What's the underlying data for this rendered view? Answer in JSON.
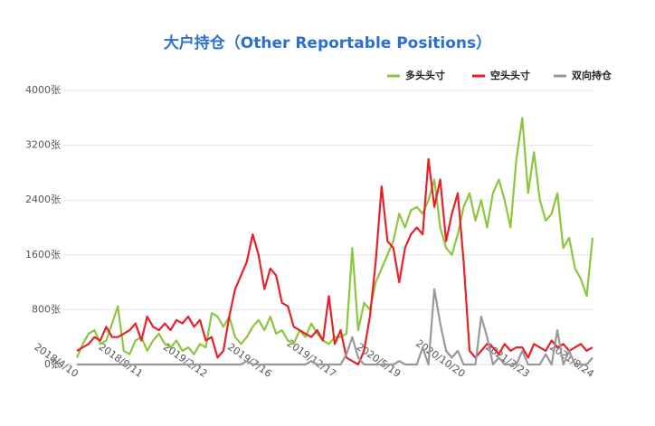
{
  "chart_data": {
    "type": "line",
    "title": "大户持仓（Other Reportable Positions）",
    "categories": [
      "2018/4/10",
      null,
      null,
      null,
      null,
      null,
      null,
      null,
      null,
      null,
      null,
      "2018/9/11",
      null,
      null,
      null,
      null,
      null,
      null,
      null,
      null,
      null,
      null,
      "2019/2/12",
      null,
      null,
      null,
      null,
      null,
      null,
      null,
      null,
      null,
      null,
      "2019/7/16",
      null,
      null,
      null,
      null,
      null,
      null,
      null,
      null,
      null,
      null,
      "2019/12/17",
      null,
      null,
      null,
      null,
      null,
      null,
      null,
      null,
      null,
      null,
      "2020/5/19",
      null,
      null,
      null,
      null,
      null,
      null,
      null,
      null,
      null,
      null,
      "2020/10/20",
      null,
      null,
      null,
      null,
      null,
      null,
      null,
      null,
      null,
      null,
      "2021/3/23",
      null,
      null,
      null,
      null,
      null,
      null,
      null,
      null,
      null,
      null,
      "2021/8/24"
    ],
    "series": [
      {
        "name": "多头头寸",
        "color": "#8cc63f",
        "values": [
          100,
          300,
          450,
          500,
          300,
          350,
          600,
          850,
          200,
          150,
          350,
          400,
          200,
          350,
          450,
          300,
          250,
          350,
          200,
          250,
          150,
          300,
          250,
          750,
          700,
          550,
          700,
          400,
          300,
          400,
          550,
          650,
          500,
          700,
          450,
          500,
          350,
          300,
          500,
          400,
          600,
          450,
          350,
          300,
          400,
          400,
          450,
          1700,
          500,
          900,
          800,
          1200,
          1400,
          1600,
          1800,
          2200,
          2000,
          2250,
          2300,
          2200,
          2400,
          2700,
          2000,
          1700,
          1600,
          1900,
          2300,
          2500,
          2100,
          2400,
          2000,
          2500,
          2700,
          2400,
          2000,
          3000,
          3600,
          2500,
          3100,
          2400,
          2100,
          2200,
          2500,
          1700,
          1850,
          1400,
          1250,
          1000,
          1850
        ]
      },
      {
        "name": "空头头寸",
        "color": "#e8202a",
        "values": [
          200,
          250,
          300,
          400,
          350,
          550,
          400,
          400,
          450,
          500,
          600,
          350,
          700,
          550,
          500,
          600,
          500,
          650,
          600,
          700,
          550,
          650,
          350,
          400,
          100,
          200,
          700,
          1100,
          1300,
          1500,
          1900,
          1600,
          1100,
          1400,
          1300,
          900,
          850,
          550,
          500,
          450,
          400,
          500,
          350,
          1000,
          300,
          500,
          100,
          50,
          0,
          200,
          700,
          1500,
          2600,
          1800,
          1700,
          1200,
          1700,
          1900,
          2000,
          1900,
          3000,
          2300,
          2700,
          1800,
          2200,
          2500,
          1500,
          200,
          100,
          200,
          300,
          250,
          150,
          300,
          200,
          250,
          250,
          100,
          300,
          250,
          200,
          350,
          250,
          300,
          200,
          250,
          300,
          200,
          250
        ]
      },
      {
        "name": "双向持仓",
        "color": "#999999",
        "values": [
          0,
          0,
          0,
          0,
          0,
          0,
          0,
          0,
          0,
          0,
          0,
          0,
          0,
          0,
          0,
          0,
          0,
          0,
          0,
          0,
          0,
          0,
          0,
          0,
          0,
          0,
          0,
          0,
          0,
          50,
          0,
          0,
          0,
          0,
          0,
          0,
          0,
          0,
          0,
          0,
          50,
          0,
          0,
          0,
          0,
          0,
          150,
          400,
          100,
          0,
          0,
          0,
          0,
          0,
          0,
          50,
          0,
          0,
          0,
          250,
          0,
          1100,
          600,
          200,
          100,
          200,
          0,
          0,
          0,
          700,
          400,
          0,
          100,
          0,
          0,
          0,
          200,
          0,
          0,
          0,
          150,
          0,
          500,
          0,
          200,
          0,
          0,
          0,
          100
        ]
      }
    ],
    "ylim": [
      0,
      4000
    ],
    "yticks": [
      {
        "value": 0,
        "label": "0张"
      },
      {
        "value": 800,
        "label": "800张"
      },
      {
        "value": 1600,
        "label": "1600张"
      },
      {
        "value": 2400,
        "label": "2400张"
      },
      {
        "value": 3200,
        "label": "3200张"
      },
      {
        "value": 4000,
        "label": "4000张"
      }
    ],
    "grid": true
  }
}
